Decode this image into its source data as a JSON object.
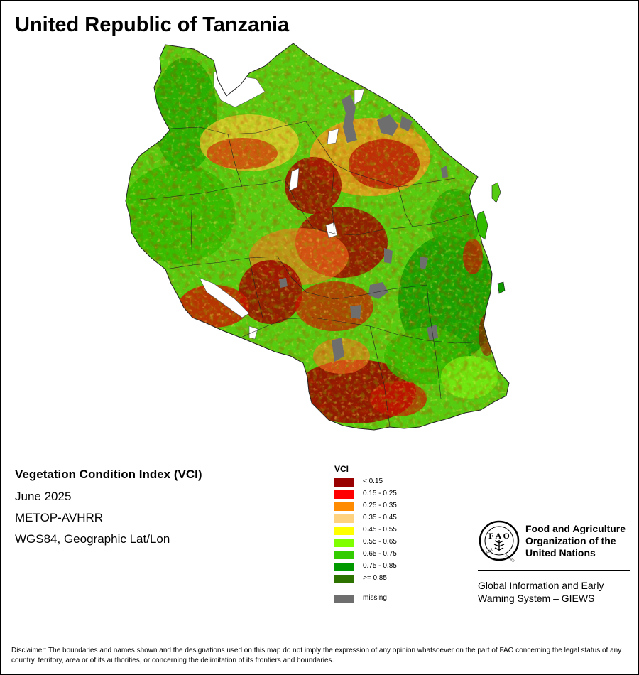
{
  "title": "United Republic of Tanzania",
  "info": {
    "product": "Vegetation Condition Index (VCI)",
    "date": "June 2025",
    "sensor": "METOP-AVHRR",
    "projection": "WGS84, Geographic Lat/Lon"
  },
  "legend": {
    "title": "VCI",
    "items": [
      {
        "label": "< 0.15",
        "color": "#990000"
      },
      {
        "label": "0.15 - 0.25",
        "color": "#ff0000"
      },
      {
        "label": "0.25 - 0.35",
        "color": "#ff8c00"
      },
      {
        "label": "0.35 - 0.45",
        "color": "#ffd27f"
      },
      {
        "label": "0.45 - 0.55",
        "color": "#ffff00"
      },
      {
        "label": "0.55 - 0.65",
        "color": "#7fff00"
      },
      {
        "label": "0.65 - 0.75",
        "color": "#33cc00"
      },
      {
        "label": "0.75 - 0.85",
        "color": "#009900"
      },
      {
        "label": ">= 0.85",
        "color": "#2d7300"
      }
    ],
    "missing": {
      "label": "missing",
      "color": "#6e6e6e"
    }
  },
  "logo": {
    "org_name": [
      "Food and Agriculture",
      "Organization of the",
      "United Nations"
    ],
    "seal_text": "FIAT PANIS",
    "giews": [
      "Global Information and Early",
      "Warning System – GIEWS"
    ]
  },
  "disclaimer": "Disclaimer: The boundaries and names shown and the designations used on this map do not imply the expression of any opinion whatsoever on the part of FAO concerning the legal status of any country, territory, area or of its authorities, or concerning the delimitation of its frontiers and boundaries."
}
